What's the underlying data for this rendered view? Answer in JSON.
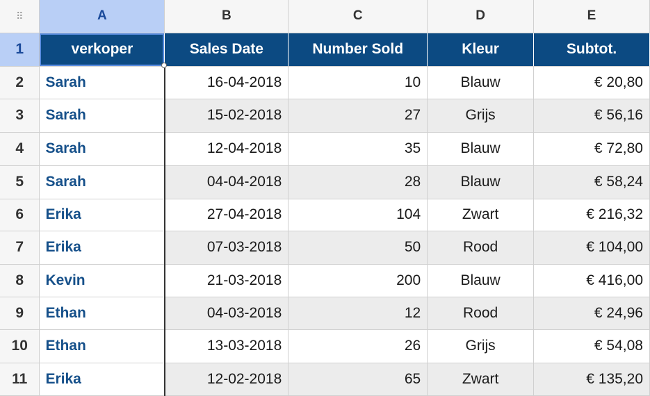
{
  "grid": {
    "corner_icon": "grid-dots-icon",
    "columns": [
      "A",
      "B",
      "C",
      "D",
      "E"
    ],
    "header": [
      "verkoper",
      "Sales Date",
      "Number Sold",
      "Kleur",
      "Subtot."
    ],
    "rows": [
      {
        "num": "2",
        "cells": [
          "Sarah",
          "16-04-2018",
          "10",
          "Blauw",
          "€ 20,80"
        ]
      },
      {
        "num": "3",
        "cells": [
          "Sarah",
          "15-02-2018",
          "27",
          "Grijs",
          "€ 56,16"
        ]
      },
      {
        "num": "4",
        "cells": [
          "Sarah",
          "12-04-2018",
          "35",
          "Blauw",
          "€ 72,80"
        ]
      },
      {
        "num": "5",
        "cells": [
          "Sarah",
          "04-04-2018",
          "28",
          "Blauw",
          "€ 58,24"
        ]
      },
      {
        "num": "6",
        "cells": [
          "Erika",
          "27-04-2018",
          "104",
          "Zwart",
          "€ 216,32"
        ]
      },
      {
        "num": "7",
        "cells": [
          "Erika",
          "07-03-2018",
          "50",
          "Rood",
          "€ 104,00"
        ]
      },
      {
        "num": "8",
        "cells": [
          "Kevin",
          "21-03-2018",
          "200",
          "Blauw",
          "€ 416,00"
        ]
      },
      {
        "num": "9",
        "cells": [
          "Ethan",
          "04-03-2018",
          "12",
          "Rood",
          "€ 24,96"
        ]
      },
      {
        "num": "10",
        "cells": [
          "Ethan",
          "13-03-2018",
          "26",
          "Grijs",
          "€ 54,08"
        ]
      },
      {
        "num": "11",
        "cells": [
          "Erika",
          "12-02-2018",
          "65",
          "Zwart",
          "€ 135,20"
        ]
      }
    ],
    "header_row_num": "1",
    "selected_cell": "A1",
    "colors": {
      "header_bg": "#0c4a82",
      "name_text": "#16508a",
      "selection": "#b9cff6",
      "alt_row": "#ececec"
    }
  }
}
